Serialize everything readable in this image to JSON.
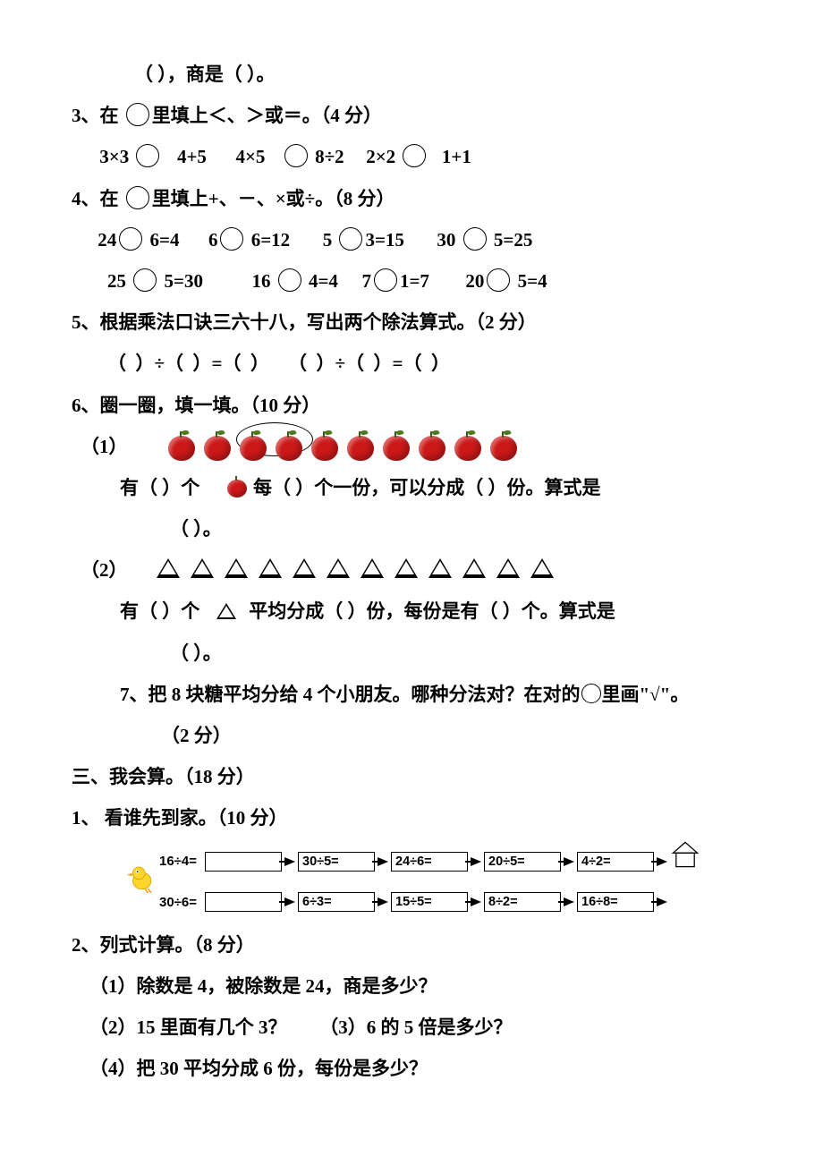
{
  "q2tail": "（   ），商是（   ）。",
  "q3": {
    "title": "3、在",
    "title2": "填上＜、＞或＝。（4 分）",
    "expr": "3×3",
    "e1b": "4+5",
    "e2a": "4×5",
    "e2b": "8÷2",
    "e3a": "2×2",
    "e3b": "1+1"
  },
  "q4": {
    "title": "4、在",
    "title2": "填上+、－、×或÷。（8 分）",
    "r1": {
      "a": "24",
      "b": "6=4",
      "c": "6",
      "d": "6=12",
      "e": "5",
      "f": "3=15",
      "g": "30",
      "h": "5=25"
    },
    "r2": {
      "a": "25",
      "b": "5=30",
      "c": "16",
      "d": "4=4",
      "e": "7",
      "f": "1=7",
      "g": "20",
      "h": "5=4"
    }
  },
  "q5": {
    "title": "5、根据乘法口诀三六十八，写出两个除法算式。（2 分）",
    "expr": "（  ）÷（  ）=（  ）    （  ）÷（  ）=（  ）"
  },
  "q6": {
    "title": "6、圈一圈，填一填。（10 分）",
    "p1label": "（1）",
    "p1line": "有（   ）个",
    "p1line_b": "每（   ）个一份，可以分成（   ）份。算式是",
    "p1blank": "（               ）。",
    "p2label": "（2）",
    "p2line": "有（   ）个",
    "p2line_b": "平均分成（   ）份，每份是有（    ）个。算式是",
    "p2blank": "（               ）。"
  },
  "q7": "7、把 8 块糖平均分给 4 个小朋友。哪种分法对？在对的",
  "q7b": "里画\"√\"。",
  "q7pts": "（2 分）",
  "s3": "三、我会算。（18 分）",
  "c1": {
    "title": "1、 看谁先到家。（10 分）",
    "rowA": [
      "16÷4=",
      "30÷5=",
      "24÷6=",
      "20÷5=",
      "4÷2="
    ],
    "rowB": [
      "30÷6=",
      "6÷3=",
      "15÷5=",
      "8÷2=",
      "16÷8="
    ]
  },
  "c2": {
    "title": "2、列式计算。（8 分）",
    "i1": "（1）除数是 4，被除数是 24，商是多少？",
    "i2": "（2）15 里面有几个 3？       （3）6 的 5 倍是多少？",
    "i4": "（4）把 30 平均分成 6 份，每份是多少？"
  },
  "counts": {
    "apples": 10,
    "triangles": 12
  },
  "colors": {
    "apple": "#cc1818",
    "text": "#000000",
    "bg": "#ffffff"
  }
}
